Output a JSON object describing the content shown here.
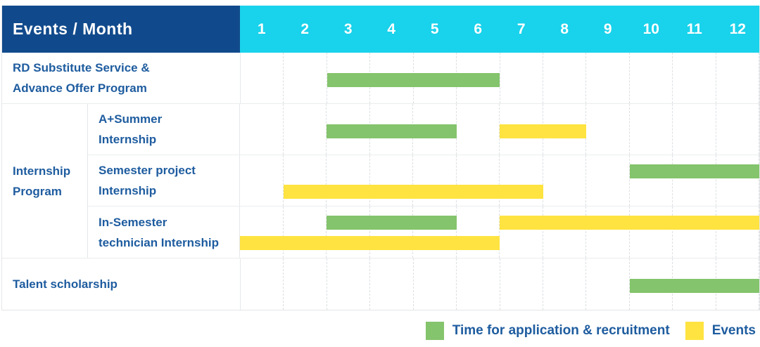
{
  "header": {
    "title": "Events / Month",
    "months": [
      "1",
      "2",
      "3",
      "4",
      "5",
      "6",
      "7",
      "8",
      "9",
      "10",
      "11",
      "12"
    ]
  },
  "colors": {
    "header_bg": "#114A8C",
    "months_bg": "#19D2EB",
    "text_blue": "#1E5C9F",
    "application_green": "#84C46C",
    "events_yellow": "#FFE340"
  },
  "legend": {
    "items": [
      {
        "series": "application",
        "label": "Time for application & recruitment"
      },
      {
        "series": "events",
        "label": "Events"
      }
    ]
  },
  "chart_data": {
    "type": "gantt",
    "x_axis": {
      "label": "Month",
      "ticks": [
        "1",
        "2",
        "3",
        "4",
        "5",
        "6",
        "7",
        "8",
        "9",
        "10",
        "11",
        "12"
      ],
      "range": [
        1,
        12
      ]
    },
    "series_legend": {
      "application": "Time for application & recruitment",
      "events": "Events"
    },
    "groups": [
      {
        "name": "Internship Program",
        "label_lines": [
          "Internship",
          "Program"
        ]
      }
    ],
    "rows": [
      {
        "label": "RD Substitute Service & Advance Offer Program",
        "label_lines": [
          "RD Substitute Service &",
          "Advance Offer Program"
        ],
        "group": null,
        "bars": [
          {
            "series": "application",
            "start_month": 3,
            "end_month": 6,
            "lane": "single"
          }
        ]
      },
      {
        "label": "A+Summer Internship",
        "label_lines": [
          "A+Summer",
          "Internship"
        ],
        "group": "Internship Program",
        "bars": [
          {
            "series": "application",
            "start_month": 3,
            "end_month": 5,
            "lane": "single"
          },
          {
            "series": "events",
            "start_month": 7,
            "end_month": 8,
            "lane": "single"
          }
        ]
      },
      {
        "label": "Semester project Internship",
        "label_lines": [
          "Semester project",
          "Internship"
        ],
        "group": "Internship Program",
        "bars": [
          {
            "series": "application",
            "start_month": 10,
            "end_month": 12,
            "lane": "upper"
          },
          {
            "series": "events",
            "start_month": 2,
            "end_month": 7,
            "lane": "lower"
          }
        ]
      },
      {
        "label": "In-Semester technician Internship",
        "label_lines": [
          "In-Semester",
          "technician Internship"
        ],
        "group": "Internship Program",
        "bars": [
          {
            "series": "application",
            "start_month": 3,
            "end_month": 5,
            "lane": "upper"
          },
          {
            "series": "events",
            "start_month": 7,
            "end_month": 12,
            "lane": "upper"
          },
          {
            "series": "events",
            "start_month": 1,
            "end_month": 6,
            "lane": "lower"
          }
        ]
      },
      {
        "label": "Talent scholarship",
        "label_lines": [
          "Talent scholarship"
        ],
        "group": null,
        "bars": [
          {
            "series": "application",
            "start_month": 10,
            "end_month": 12,
            "lane": "single"
          }
        ]
      }
    ]
  }
}
